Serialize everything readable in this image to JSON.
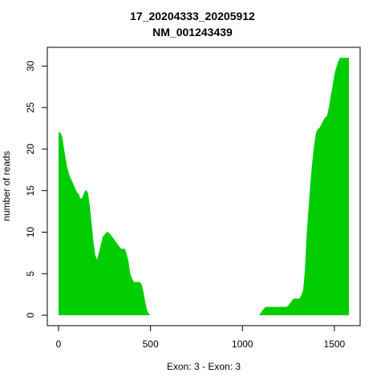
{
  "chart_data": {
    "type": "area",
    "title": [
      "17_20204333_20205912",
      "NM_001243439"
    ],
    "xlabel": "Exon: 3 - Exon: 3",
    "ylabel": "number of reads",
    "xlim": [
      0,
      1579
    ],
    "ylim": [
      0,
      31
    ],
    "x_ticks": [
      0,
      500,
      1000,
      1500
    ],
    "y_ticks": [
      0,
      5,
      10,
      15,
      20,
      25,
      30
    ],
    "fill_color": "#00CD00",
    "grid": false,
    "x": [
      0,
      10,
      20,
      30,
      45,
      60,
      80,
      100,
      110,
      120,
      130,
      140,
      150,
      160,
      170,
      180,
      190,
      200,
      210,
      220,
      240,
      260,
      270,
      280,
      290,
      300,
      320,
      340,
      350,
      360,
      370,
      380,
      390,
      400,
      410,
      420,
      430,
      440,
      450,
      460,
      470,
      480,
      490,
      500,
      510,
      520,
      600,
      800,
      1000,
      1090,
      1100,
      1110,
      1120,
      1130,
      1200,
      1240,
      1250,
      1260,
      1270,
      1280,
      1290,
      1300,
      1310,
      1320,
      1330,
      1340,
      1350,
      1360,
      1370,
      1380,
      1390,
      1400,
      1410,
      1420,
      1430,
      1440,
      1450,
      1460,
      1470,
      1480,
      1490,
      1500,
      1510,
      1520,
      1530,
      1540,
      1550,
      1560,
      1570,
      1579
    ],
    "values": [
      22,
      22,
      21.5,
      20,
      18,
      16.8,
      15.8,
      14.8,
      14.6,
      14,
      14.2,
      14.8,
      15.1,
      14.7,
      13.2,
      11,
      8.8,
      7.2,
      6.7,
      7.6,
      9.4,
      10,
      10,
      9.8,
      9.5,
      9.2,
      8.6,
      8,
      8,
      8,
      7.4,
      6.5,
      5,
      4.4,
      4,
      4,
      4,
      4,
      3.8,
      3,
      1.8,
      0.7,
      0.2,
      0,
      0,
      0,
      0,
      0,
      0,
      0,
      0.3,
      0.6,
      0.9,
      1,
      1,
      1,
      1.2,
      1.5,
      1.8,
      2,
      2,
      2,
      2,
      2.4,
      3,
      5.5,
      10,
      13,
      16,
      18.5,
      20.5,
      22,
      22.4,
      22.6,
      23,
      23.5,
      23.8,
      24,
      25,
      26.4,
      27.6,
      29,
      29.8,
      30.5,
      31,
      31,
      31,
      31,
      31,
      31
    ]
  }
}
